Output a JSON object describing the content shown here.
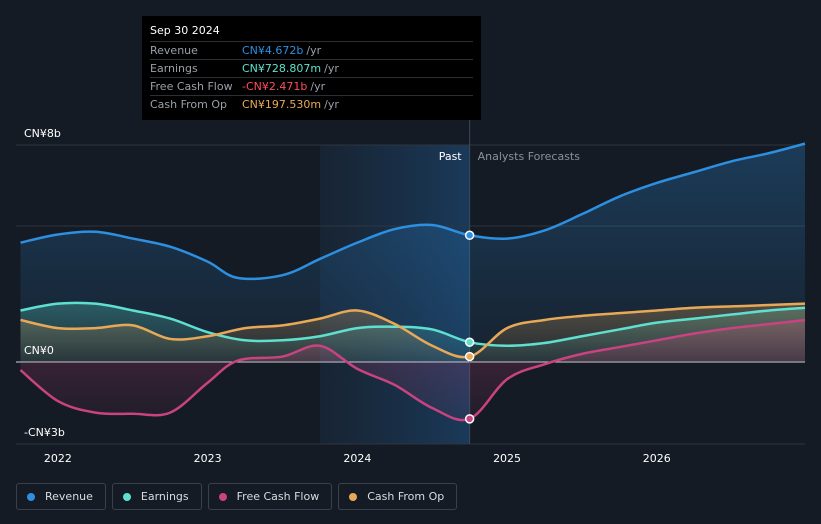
{
  "tooltip": {
    "date": "Sep 30 2024",
    "rows": [
      {
        "label": "Revenue",
        "value": "CN¥4.672b",
        "unit": "/yr",
        "color": "#2d8fe0"
      },
      {
        "label": "Earnings",
        "value": "CN¥728.807m",
        "unit": "/yr",
        "color": "#5ee0d0"
      },
      {
        "label": "Free Cash Flow",
        "value": "-CN¥2.471b",
        "unit": "/yr",
        "color": "#ff4d5e"
      },
      {
        "label": "Cash From Op",
        "value": "CN¥197.530m",
        "unit": "/yr",
        "color": "#e8a957"
      }
    ]
  },
  "legend": [
    {
      "label": "Revenue",
      "color": "#2d8fe0"
    },
    {
      "label": "Earnings",
      "color": "#5ee0d0"
    },
    {
      "label": "Free Cash Flow",
      "color": "#c8437f"
    },
    {
      "label": "Cash From Op",
      "color": "#e8a957"
    }
  ],
  "chart_data": {
    "type": "line",
    "y_tick_labels": [
      "CN¥8b",
      "CN¥0",
      "-CN¥3b"
    ],
    "x_tick_labels": [
      "2022",
      "2023",
      "2024",
      "2025",
      "2026"
    ],
    "past_label": "Past",
    "forecast_label": "Analysts Forecasts",
    "ylim": [
      -3,
      8
    ],
    "xlim": [
      2021.72,
      2026.99
    ],
    "divider_x": 2024.75,
    "highlight_start_x": 2023.75,
    "series": [
      {
        "name": "Revenue",
        "color": "#2d8fe0",
        "points": [
          [
            2021.75,
            4.4
          ],
          [
            2022.0,
            4.7
          ],
          [
            2022.25,
            4.8
          ],
          [
            2022.5,
            4.55
          ],
          [
            2022.75,
            4.25
          ],
          [
            2023.0,
            3.7
          ],
          [
            2023.2,
            3.1
          ],
          [
            2023.5,
            3.2
          ],
          [
            2023.75,
            3.8
          ],
          [
            2024.0,
            4.4
          ],
          [
            2024.25,
            4.9
          ],
          [
            2024.5,
            5.05
          ],
          [
            2024.75,
            4.672
          ],
          [
            2025.0,
            4.55
          ],
          [
            2025.25,
            4.85
          ],
          [
            2025.5,
            5.45
          ],
          [
            2025.75,
            6.1
          ],
          [
            2026.0,
            6.6
          ],
          [
            2026.25,
            7.0
          ],
          [
            2026.5,
            7.4
          ],
          [
            2026.75,
            7.7
          ],
          [
            2026.99,
            8.05
          ]
        ]
      },
      {
        "name": "Earnings",
        "color": "#5ee0d0",
        "points": [
          [
            2021.75,
            1.9
          ],
          [
            2022.0,
            2.15
          ],
          [
            2022.25,
            2.15
          ],
          [
            2022.5,
            1.9
          ],
          [
            2022.75,
            1.6
          ],
          [
            2023.0,
            1.1
          ],
          [
            2023.25,
            0.8
          ],
          [
            2023.5,
            0.8
          ],
          [
            2023.75,
            0.95
          ],
          [
            2024.0,
            1.25
          ],
          [
            2024.25,
            1.3
          ],
          [
            2024.5,
            1.2
          ],
          [
            2024.75,
            0.73
          ],
          [
            2025.0,
            0.6
          ],
          [
            2025.25,
            0.7
          ],
          [
            2025.5,
            0.95
          ],
          [
            2025.75,
            1.2
          ],
          [
            2026.0,
            1.45
          ],
          [
            2026.25,
            1.6
          ],
          [
            2026.5,
            1.75
          ],
          [
            2026.75,
            1.9
          ],
          [
            2026.99,
            2.0
          ]
        ]
      },
      {
        "name": "Free Cash Flow",
        "color": "#c8437f",
        "points": [
          [
            2021.75,
            -0.35
          ],
          [
            2022.0,
            -1.7
          ],
          [
            2022.25,
            -2.2
          ],
          [
            2022.5,
            -2.25
          ],
          [
            2022.75,
            -2.2
          ],
          [
            2023.0,
            -0.9
          ],
          [
            2023.2,
            0.05
          ],
          [
            2023.5,
            0.2
          ],
          [
            2023.75,
            0.6
          ],
          [
            2024.0,
            -0.3
          ],
          [
            2024.25,
            -1.0
          ],
          [
            2024.5,
            -2.0
          ],
          [
            2024.75,
            -2.471
          ],
          [
            2025.0,
            -0.75
          ],
          [
            2025.25,
            -0.1
          ],
          [
            2025.5,
            0.3
          ],
          [
            2025.75,
            0.55
          ],
          [
            2026.0,
            0.8
          ],
          [
            2026.25,
            1.05
          ],
          [
            2026.5,
            1.25
          ],
          [
            2026.75,
            1.4
          ],
          [
            2026.99,
            1.55
          ]
        ]
      },
      {
        "name": "Cash From Op",
        "color": "#e8a957",
        "points": [
          [
            2021.75,
            1.55
          ],
          [
            2022.0,
            1.25
          ],
          [
            2022.25,
            1.25
          ],
          [
            2022.5,
            1.35
          ],
          [
            2022.75,
            0.85
          ],
          [
            2023.0,
            0.95
          ],
          [
            2023.25,
            1.25
          ],
          [
            2023.5,
            1.35
          ],
          [
            2023.75,
            1.6
          ],
          [
            2024.0,
            1.9
          ],
          [
            2024.25,
            1.4
          ],
          [
            2024.5,
            0.6
          ],
          [
            2024.75,
            0.2
          ],
          [
            2025.0,
            1.25
          ],
          [
            2025.25,
            1.55
          ],
          [
            2025.5,
            1.7
          ],
          [
            2025.75,
            1.8
          ],
          [
            2026.0,
            1.9
          ],
          [
            2026.25,
            2.0
          ],
          [
            2026.5,
            2.05
          ],
          [
            2026.75,
            2.1
          ],
          [
            2026.99,
            2.15
          ]
        ]
      }
    ]
  }
}
